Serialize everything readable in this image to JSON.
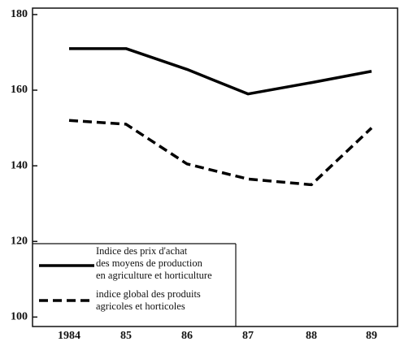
{
  "chart_data": {
    "type": "line",
    "categories": [
      "1984",
      "85",
      "86",
      "87",
      "88",
      "89"
    ],
    "series": [
      {
        "name": "Indice des prix d'achat\ndes moyens de production\nen agriculture et horticulture",
        "color": "#000000",
        "dash": "solid",
        "values": [
          171,
          171,
          165.5,
          159,
          162,
          165
        ]
      },
      {
        "name": "indice global des produits\nagricoles et horticoles",
        "color": "#000000",
        "dash": "dashed",
        "values": [
          152,
          151,
          140.5,
          136.5,
          135,
          150
        ]
      }
    ],
    "ylim": [
      97.5,
      181.7
    ],
    "yticks": [
      100,
      120,
      140,
      160,
      180
    ],
    "grid": false,
    "legend": "lower left"
  }
}
